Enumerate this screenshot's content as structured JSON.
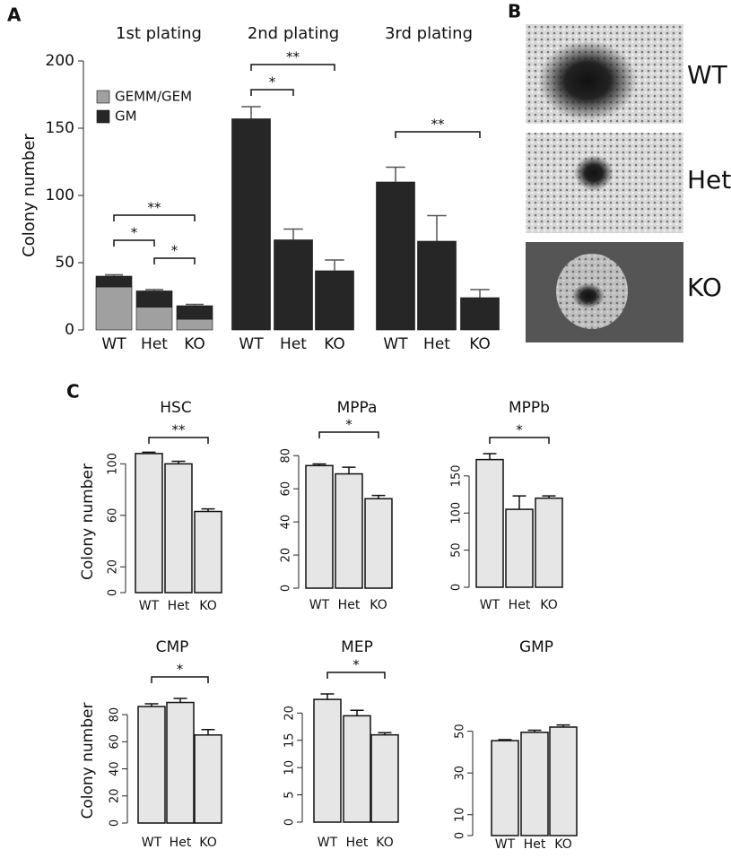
{
  "chart_data": [
    {
      "type": "bar",
      "panel_label": "A",
      "title": "1st plating",
      "y_label": "Colony number",
      "stacked": true,
      "categories": [
        "WT",
        "Het",
        "KO"
      ],
      "series": [
        {
          "name": "GEMM/GEM",
          "color": "#a0a0a0",
          "values": [
            32,
            17,
            8
          ]
        },
        {
          "name": "GM",
          "color": "#262626",
          "values": [
            8,
            12,
            10
          ],
          "errors": [
            1,
            1,
            1
          ]
        }
      ],
      "ylim": [
        0,
        200
      ],
      "yticks": [
        0,
        50,
        100,
        150,
        200
      ],
      "legend": "upper left",
      "significance": [
        {
          "between": [
            "WT",
            "Het"
          ],
          "label": "*"
        },
        {
          "between": [
            "Het",
            "KO"
          ],
          "label": "*"
        },
        {
          "between": [
            "WT",
            "KO"
          ],
          "label": "**"
        }
      ]
    },
    {
      "type": "bar",
      "title": "2nd plating",
      "categories": [
        "WT",
        "Het",
        "KO"
      ],
      "color": "#262626",
      "values": [
        157,
        67,
        44
      ],
      "errors": [
        9,
        8,
        8
      ],
      "ylim": [
        0,
        200
      ],
      "significance": [
        {
          "between": [
            "WT",
            "Het"
          ],
          "label": "*"
        },
        {
          "between": [
            "WT",
            "KO"
          ],
          "label": "**"
        }
      ]
    },
    {
      "type": "bar",
      "title": "3rd plating",
      "categories": [
        "WT",
        "Het",
        "KO"
      ],
      "color": "#262626",
      "values": [
        110,
        66,
        24
      ],
      "errors": [
        11,
        19,
        6
      ],
      "ylim": [
        0,
        200
      ],
      "significance": [
        {
          "between": [
            "WT",
            "KO"
          ],
          "label": "**"
        }
      ]
    },
    {
      "type": "bar",
      "panel_label": "C",
      "title": "HSC",
      "y_label": "Colony number",
      "categories": [
        "WT",
        "Het",
        "KO"
      ],
      "color": "#e6e6e6",
      "values": [
        108,
        100,
        63
      ],
      "errors": [
        1,
        2,
        2
      ],
      "ylim": [
        0,
        110
      ],
      "yticks": [
        0,
        20,
        60,
        100
      ],
      "significance": [
        {
          "between": [
            "WT",
            "KO"
          ],
          "label": "**"
        }
      ]
    },
    {
      "type": "bar",
      "title": "MPPa",
      "categories": [
        "WT",
        "Het",
        "KO"
      ],
      "color": "#e6e6e6",
      "values": [
        74,
        69,
        54
      ],
      "errors": [
        1,
        4,
        2
      ],
      "ylim": [
        0,
        85
      ],
      "yticks": [
        0,
        20,
        40,
        60,
        80
      ],
      "significance": [
        {
          "between": [
            "WT",
            "KO"
          ],
          "label": "*"
        }
      ]
    },
    {
      "type": "bar",
      "title": "MPPb",
      "categories": [
        "WT",
        "Het",
        "KO"
      ],
      "color": "#e6e6e6",
      "values": [
        172,
        105,
        120
      ],
      "errors": [
        8,
        18,
        3
      ],
      "ylim": [
        0,
        180
      ],
      "yticks": [
        0,
        50,
        100,
        150
      ],
      "significance": [
        {
          "between": [
            "WT",
            "KO"
          ],
          "label": "*"
        }
      ]
    },
    {
      "type": "bar",
      "title": "CMP",
      "y_label": "Colony number",
      "categories": [
        "WT",
        "Het",
        "KO"
      ],
      "color": "#e6e6e6",
      "values": [
        86,
        89,
        65
      ],
      "errors": [
        2,
        3,
        4
      ],
      "ylim": [
        0,
        92
      ],
      "yticks": [
        0,
        20,
        40,
        60,
        80
      ],
      "significance": [
        {
          "between": [
            "WT",
            "KO"
          ],
          "label": "*"
        }
      ]
    },
    {
      "type": "bar",
      "title": "MEP",
      "categories": [
        "WT",
        "Het",
        "KO"
      ],
      "color": "#e6e6e6",
      "values": [
        22.5,
        19.5,
        16
      ],
      "errors": [
        1,
        1,
        0.4
      ],
      "ylim": [
        0,
        24
      ],
      "yticks": [
        0,
        5,
        10,
        15,
        20
      ],
      "significance": [
        {
          "between": [
            "WT",
            "KO"
          ],
          "label": "*"
        }
      ]
    },
    {
      "type": "bar",
      "title": "GMP",
      "categories": [
        "WT",
        "Het",
        "KO"
      ],
      "color": "#e6e6e6",
      "values": [
        45.5,
        49.5,
        52
      ],
      "errors": [
        0.5,
        1,
        1
      ],
      "ylim": [
        0,
        55
      ],
      "yticks": [
        0,
        10,
        30,
        50
      ]
    }
  ],
  "images": {
    "panel_label": "B",
    "labels": [
      "WT",
      "Het",
      "KO"
    ]
  }
}
